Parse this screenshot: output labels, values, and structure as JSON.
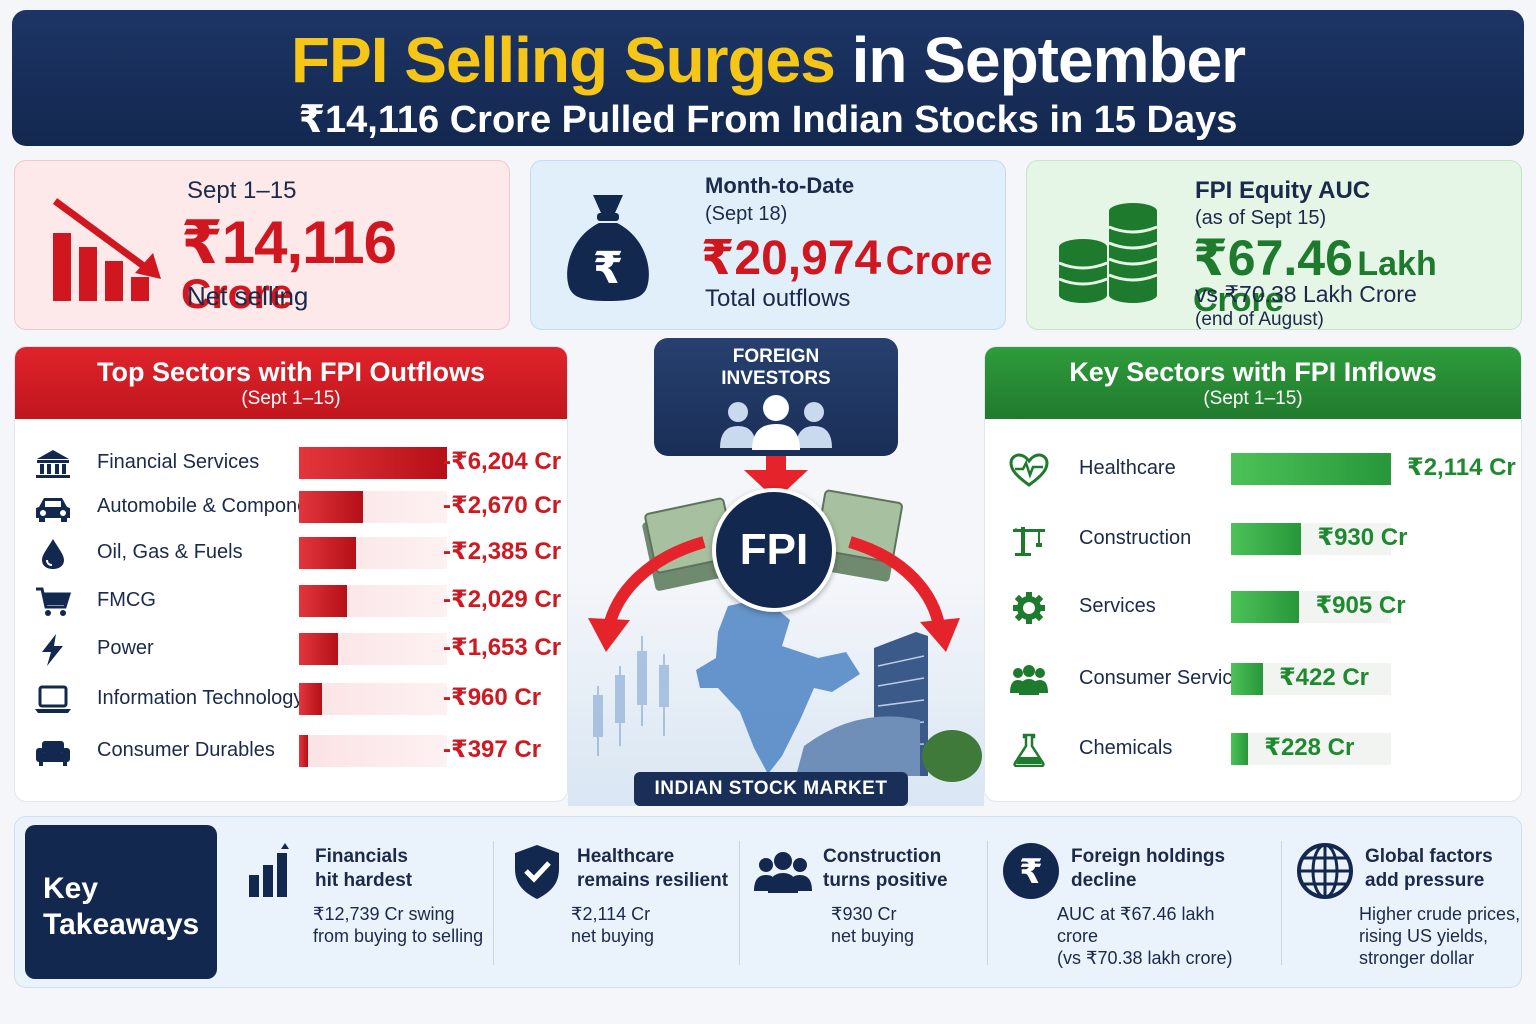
{
  "header": {
    "title_highlight": "FPI Selling Surges",
    "title_rest": " in September",
    "subtitle": "₹14,116 Crore Pulled From Indian Stocks in 15 Days"
  },
  "stats": {
    "net_selling": {
      "period": "Sept 1–15",
      "value": "₹14,116",
      "unit": "Crore",
      "caption": "Net selling"
    },
    "mtd": {
      "label": "Month-to-Date",
      "date": "(Sept 18)",
      "value": "₹20,974",
      "unit": "Crore",
      "caption": "Total outflows"
    },
    "auc": {
      "label": "FPI Equity AUC",
      "date": "(as of Sept 15)",
      "value": "₹67.46",
      "unit": "Lakh Crore",
      "compare": "vs ₹70.38 Lakh Crore",
      "compare_date": "(end of August)"
    }
  },
  "outflows": {
    "title": "Top Sectors with FPI Outflows",
    "period": "(Sept 1–15)",
    "rows": [
      {
        "name": "Financial Services",
        "value": "-₹6,204 Cr",
        "amount": 6204,
        "icon": "bank-icon"
      },
      {
        "name": "Automobile & Components",
        "value": "-₹2,670 Cr",
        "amount": 2670,
        "icon": "car-icon"
      },
      {
        "name": "Oil, Gas & Fuels",
        "value": "-₹2,385 Cr",
        "amount": 2385,
        "icon": "oil-drop-icon"
      },
      {
        "name": "FMCG",
        "value": "-₹2,029 Cr",
        "amount": 2029,
        "icon": "cart-icon"
      },
      {
        "name": "Power",
        "value": "-₹1,653 Cr",
        "amount": 1653,
        "icon": "lightning-icon"
      },
      {
        "name": "Information Technology",
        "value": "-₹960 Cr",
        "amount": 960,
        "icon": "laptop-icon"
      },
      {
        "name": "Consumer Durables",
        "value": "-₹397 Cr",
        "amount": 397,
        "icon": "sofa-icon"
      }
    ]
  },
  "inflows": {
    "title": "Key Sectors with FPI Inflows",
    "period": "(Sept 1–15)",
    "rows": [
      {
        "name": "Healthcare",
        "value": "₹2,114 Cr",
        "amount": 2114,
        "icon": "heart-pulse-icon"
      },
      {
        "name": "Construction",
        "value": "₹930 Cr",
        "amount": 930,
        "icon": "crane-icon"
      },
      {
        "name": "Services",
        "value": "₹905 Cr",
        "amount": 905,
        "icon": "gear-icon"
      },
      {
        "name": "Consumer Services",
        "value": "₹422 Cr",
        "amount": 422,
        "icon": "people-icon"
      },
      {
        "name": "Chemicals",
        "value": "₹228 Cr",
        "amount": 228,
        "icon": "flask-icon"
      }
    ]
  },
  "center": {
    "investors_label_1": "FOREIGN",
    "investors_label_2": "INVESTORS",
    "fpi_label": "FPI",
    "market_label": "INDIAN STOCK MARKET"
  },
  "takeaways": {
    "title_1": "Key",
    "title_2": "Takeaways",
    "items": [
      {
        "h1": "Financials",
        "h2": "hit hardest",
        "d1": "₹12,739 Cr swing",
        "d2": "from buying to selling",
        "d3": "",
        "icon": "bar-chart-icon"
      },
      {
        "h1": "Healthcare",
        "h2": "remains resilient",
        "d1": "₹2,114 Cr",
        "d2": "net buying",
        "d3": "",
        "icon": "shield-check-icon"
      },
      {
        "h1": "Construction",
        "h2": "turns positive",
        "d1": "₹930 Cr",
        "d2": "net buying",
        "d3": "",
        "icon": "group-icon"
      },
      {
        "h1": "Foreign holdings",
        "h2": "decline",
        "d1": "AUC at ₹67.46 lakh crore",
        "d2": "(vs ₹70.38 lakh crore)",
        "d3": "",
        "icon": "rupee-icon"
      },
      {
        "h1": "Global factors",
        "h2": "add pressure",
        "d1": "Higher crude prices,",
        "d2": "rising US yields,",
        "d3": "stronger dollar",
        "icon": "globe-icon"
      }
    ]
  },
  "colors": {
    "navy": "#13284f",
    "gold": "#f5c518",
    "red": "#d01820",
    "green": "#1e8a30"
  }
}
